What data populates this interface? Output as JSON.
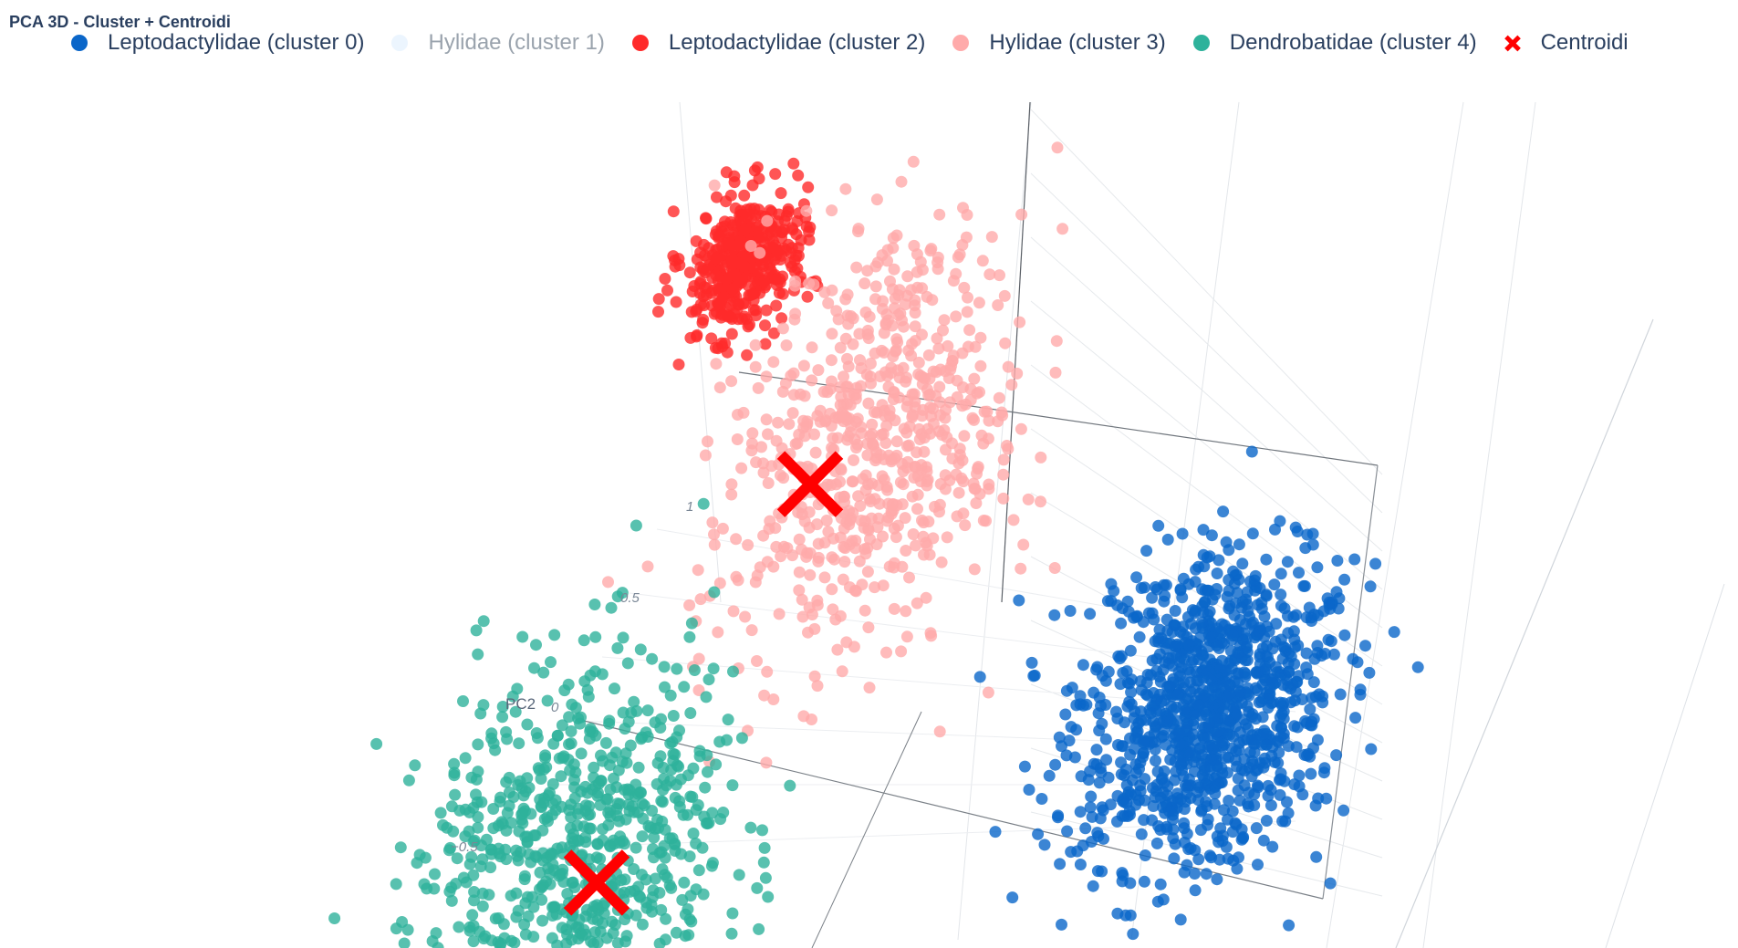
{
  "chart_data": {
    "type": "scatter3d",
    "title": "PCA 3D - Cluster + Centroidi",
    "axes": {
      "y_title": "PC2",
      "y_ticks": [
        "1",
        "0.5",
        "0",
        "−0.5"
      ]
    },
    "legend_placement": "top",
    "series": [
      {
        "name": "Leptodactylidae (cluster 0)",
        "color": "#0a66c9",
        "visible": true,
        "center": [
          0.95,
          -0.05
        ],
        "spread": [
          0.16,
          0.2
        ],
        "count": 1100
      },
      {
        "name": "Hylidae (cluster 1)",
        "color": "#c8e3fb",
        "visible": false,
        "center": [
          0,
          0
        ],
        "spread": [
          0,
          0
        ],
        "count": 0
      },
      {
        "name": "Leptodactylidae (cluster 2)",
        "color": "#ff2a2a",
        "visible": true,
        "center": [
          -0.55,
          0.95
        ],
        "spread": [
          0.07,
          0.09
        ],
        "count": 420
      },
      {
        "name": "Hylidae (cluster 3)",
        "color": "#ffaaaa",
        "visible": true,
        "center": [
          -0.1,
          0.55
        ],
        "spread": [
          0.17,
          0.28
        ],
        "count": 700
      },
      {
        "name": "Dendrobatidae (cluster 4)",
        "color": "#2eb29b",
        "visible": true,
        "center": [
          -0.55,
          -0.55
        ],
        "spread": [
          0.2,
          0.25
        ],
        "count": 750
      },
      {
        "name": "Centroidi",
        "color": "#ff0000",
        "symbol": "x",
        "visible": true,
        "points": [
          [
            -0.22,
            0.42
          ],
          [
            -0.48,
            -0.62
          ]
        ]
      }
    ]
  }
}
